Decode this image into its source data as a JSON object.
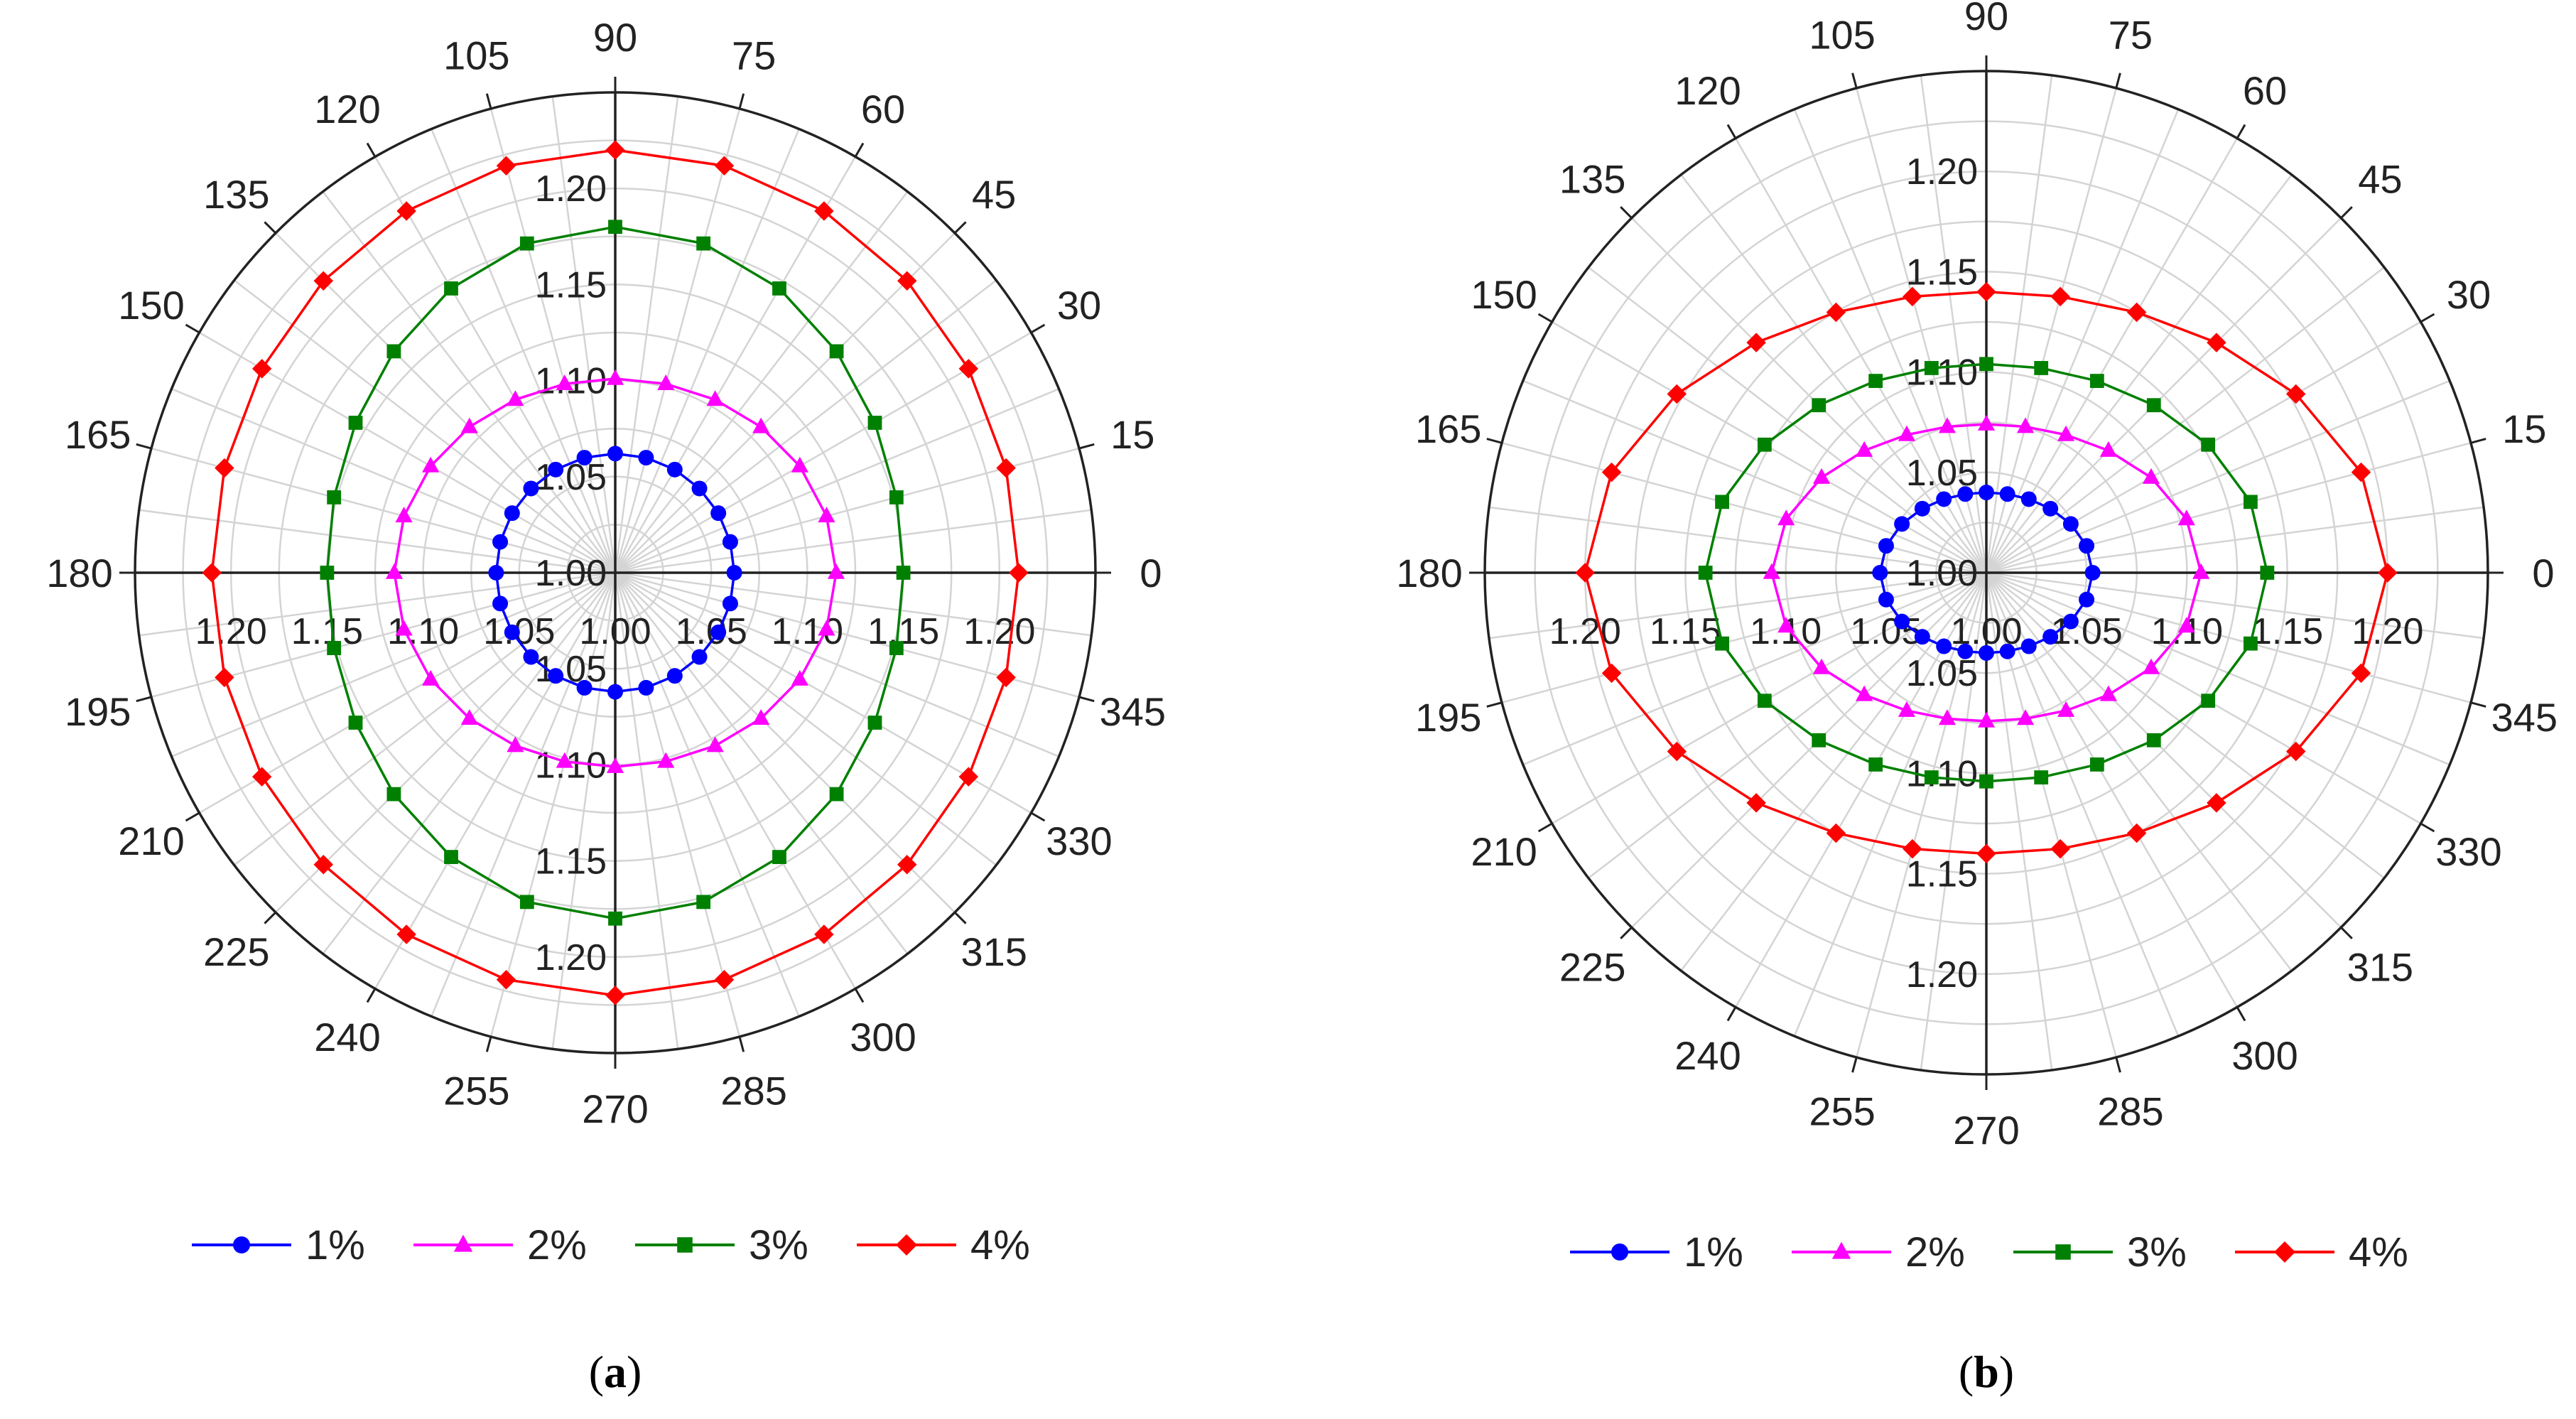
{
  "chart_data": [
    {
      "type": "polar-line",
      "panel_label": "(a)",
      "panel_letter": "a",
      "theta_unit": "degrees",
      "theta_ticks": [
        0,
        15,
        30,
        45,
        60,
        75,
        90,
        105,
        120,
        135,
        150,
        165,
        180,
        195,
        210,
        225,
        240,
        255,
        270,
        285,
        300,
        315,
        330,
        345
      ],
      "theta_tick_labels": [
        "0",
        "15",
        "30",
        "45",
        "60",
        "75",
        "90",
        "105",
        "120",
        "135",
        "150",
        "165",
        "180",
        "195",
        "210",
        "225",
        "240",
        "255",
        "270",
        "285",
        "300",
        "315",
        "330",
        "345"
      ],
      "r_range": [
        1.0,
        1.25
      ],
      "r_ticks": [
        1.0,
        1.05,
        1.1,
        1.15,
        1.2
      ],
      "r_tick_labels": [
        "1.00",
        "1.05",
        "1.10",
        "1.15",
        "1.20"
      ],
      "legend_position": "bottom",
      "series": [
        {
          "name": "1%",
          "color": "#0000ff",
          "marker": "circle",
          "a": 1.062,
          "b": 1.062,
          "theta_step": 15
        },
        {
          "name": "2%",
          "color": "#ff00ff",
          "marker": "triangle",
          "a": 1.115,
          "b": 1.101,
          "theta_step": 15
        },
        {
          "name": "3%",
          "color": "#008000",
          "marker": "square",
          "a": 1.15,
          "b": 1.18,
          "theta_step": 15
        },
        {
          "name": "4%",
          "color": "#ff0000",
          "marker": "diamond",
          "a": 1.21,
          "b": 1.22,
          "theta_step": 15
        }
      ]
    },
    {
      "type": "polar-line",
      "panel_label": "(b)",
      "panel_letter": "b",
      "theta_unit": "degrees",
      "theta_ticks": [
        0,
        15,
        30,
        45,
        60,
        75,
        90,
        105,
        120,
        135,
        150,
        165,
        180,
        195,
        210,
        225,
        240,
        255,
        270,
        285,
        300,
        315,
        330,
        345
      ],
      "theta_tick_labels": [
        "0",
        "15",
        "30",
        "45",
        "60",
        "75",
        "90",
        "105",
        "120",
        "135",
        "150",
        "165",
        "180",
        "195",
        "210",
        "225",
        "240",
        "255",
        "270",
        "285",
        "300",
        "315",
        "330",
        "345"
      ],
      "r_range": [
        1.0,
        1.25
      ],
      "r_ticks": [
        1.0,
        1.05,
        1.1,
        1.15,
        1.2
      ],
      "r_tick_labels": [
        "1.00",
        "1.05",
        "1.10",
        "1.15",
        "1.20"
      ],
      "legend_position": "bottom",
      "series": [
        {
          "name": "1%",
          "color": "#0000ff",
          "marker": "circle",
          "a": 1.053,
          "b": 1.04,
          "theta_step": 15
        },
        {
          "name": "2%",
          "color": "#ff00ff",
          "marker": "triangle",
          "a": 1.107,
          "b": 1.074,
          "theta_step": 15
        },
        {
          "name": "3%",
          "color": "#008000",
          "marker": "square",
          "a": 1.14,
          "b": 1.104,
          "theta_step": 15
        },
        {
          "name": "4%",
          "color": "#ff0000",
          "marker": "diamond",
          "a": 1.2,
          "b": 1.14,
          "theta_step": 15
        }
      ]
    }
  ]
}
